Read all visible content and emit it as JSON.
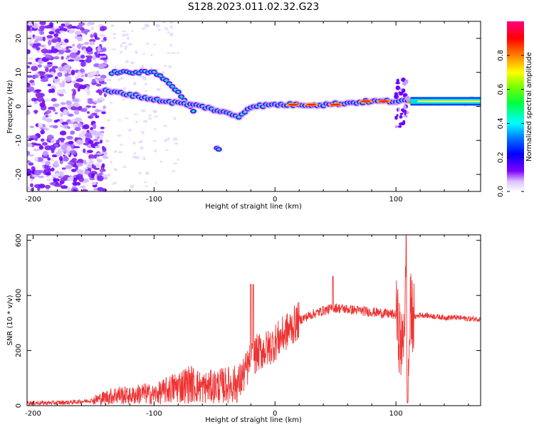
{
  "figure_title": "S128.2023.011.02.32.G23",
  "chart_data": [
    {
      "type": "heatmap",
      "title": "",
      "xlabel": "Height of straight line (km)",
      "ylabel": "Frequency (Hz)",
      "xlim": [
        -205,
        170
      ],
      "ylim": [
        -25,
        25
      ],
      "x_ticks": [
        -200,
        -100,
        0,
        100
      ],
      "x_tick_labels": [
        "-200",
        "-100",
        "0",
        "100"
      ],
      "y_ticks": [
        -20,
        -10,
        0,
        10,
        20
      ],
      "y_tick_labels": [
        "-20",
        "-10",
        "0",
        "10",
        "20"
      ],
      "colorbar": {
        "label": "Normalized spectral amplitude",
        "range": [
          0,
          1
        ],
        "ticks": [
          0.0,
          0.2,
          0.4,
          0.6,
          0.8
        ],
        "tick_labels": [
          "0.0",
          "0.2",
          "0.4",
          "0.6",
          "0.8"
        ],
        "colormap": "rainbow (white-violet-blue-cyan-green-yellow-red-magenta)"
      },
      "features": [
        {
          "description": "main carrier ridge",
          "points": [
            [
              -140,
              4.5
            ],
            [
              -120,
              3.5
            ],
            [
              -100,
              2
            ],
            [
              -80,
              1
            ],
            [
              -60,
              0
            ],
            [
              -40,
              -2
            ],
            [
              -30,
              -3
            ],
            [
              -20,
              0
            ],
            [
              0,
              0.5
            ],
            [
              40,
              0.5
            ],
            [
              80,
              1.5
            ],
            [
              100,
              1.5
            ],
            [
              130,
              1.5
            ],
            [
              170,
              1.5
            ]
          ]
        },
        {
          "description": "upper branch",
          "points": [
            [
              -135,
              10
            ],
            [
              -120,
              10
            ],
            [
              -100,
              10
            ],
            [
              -90,
              8
            ],
            [
              -80,
              4
            ],
            [
              -70,
              0
            ],
            [
              -65,
              -3
            ]
          ]
        },
        {
          "description": "lower isolated feature",
          "points": [
            [
              -48,
              -12
            ],
            [
              -45,
              -13
            ]
          ]
        },
        {
          "description": "noise region",
          "x_range": [
            -205,
            -140
          ],
          "y_range": [
            -25,
            25
          ]
        }
      ],
      "grid": false
    },
    {
      "type": "line",
      "title": "",
      "xlabel": "Height of straight line (km)",
      "ylabel": "SNR (10 * v/v)",
      "xlim": [
        -205,
        170
      ],
      "ylim": [
        0,
        620
      ],
      "x_ticks": [
        -200,
        -100,
        0,
        100
      ],
      "x_tick_labels": [
        "-200",
        "-100",
        "0",
        "100"
      ],
      "y_ticks": [
        0,
        200,
        400,
        600
      ],
      "y_tick_labels": [
        "0",
        "200",
        "400",
        "600"
      ],
      "series": [
        {
          "color": "#ee3333",
          "x": [
            -205,
            -190,
            -170,
            -160,
            -150,
            -140,
            -130,
            -120,
            -110,
            -100,
            -90,
            -80,
            -70,
            -60,
            -50,
            -40,
            -30,
            -25,
            -20,
            -15,
            -10,
            -5,
            0,
            5,
            10,
            15,
            20,
            25,
            30,
            40,
            50,
            60,
            70,
            80,
            90,
            100,
            105,
            108,
            110,
            112,
            115,
            120,
            130,
            140,
            150,
            160,
            170
          ],
          "y": [
            10,
            10,
            12,
            15,
            20,
            30,
            40,
            35,
            45,
            40,
            55,
            70,
            80,
            65,
            70,
            75,
            80,
            120,
            160,
            190,
            200,
            210,
            230,
            250,
            270,
            290,
            310,
            320,
            330,
            345,
            355,
            350,
            345,
            340,
            335,
            330,
            200,
            400,
            80,
            350,
            320,
            330,
            325,
            320,
            320,
            315,
            315
          ]
        }
      ],
      "annotations": [
        {
          "x": -20,
          "y": 440,
          "text": ""
        },
        {
          "x": -18,
          "y": 440,
          "text": ""
        },
        {
          "x": 48,
          "y": 470,
          "text": ""
        },
        {
          "x": 108,
          "y": 625,
          "text": ""
        },
        {
          "x": 109,
          "y": 10,
          "text": ""
        }
      ],
      "grid": false
    }
  ]
}
